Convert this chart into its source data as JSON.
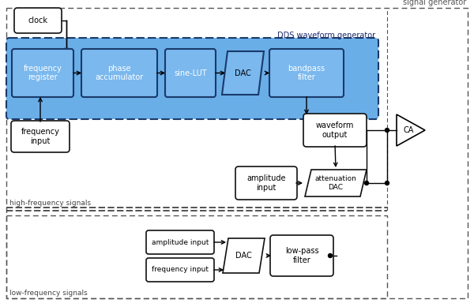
{
  "title": "signal generator",
  "dds_label": "DDS waveform generator",
  "hf_label": "high-frequency signals",
  "lf_label": "low-frequency signals",
  "bg_color": "#ffffff",
  "dds_fill": "#6aaee8",
  "dds_box_fill": "#7ab8ee",
  "dds_border": "#1a3a6a",
  "box_fill": "#ffffff",
  "box_border": "#111111",
  "outer_border": "#555555",
  "ca_text": "CA",
  "figw": 6.0,
  "figh": 3.84,
  "dpi": 100
}
